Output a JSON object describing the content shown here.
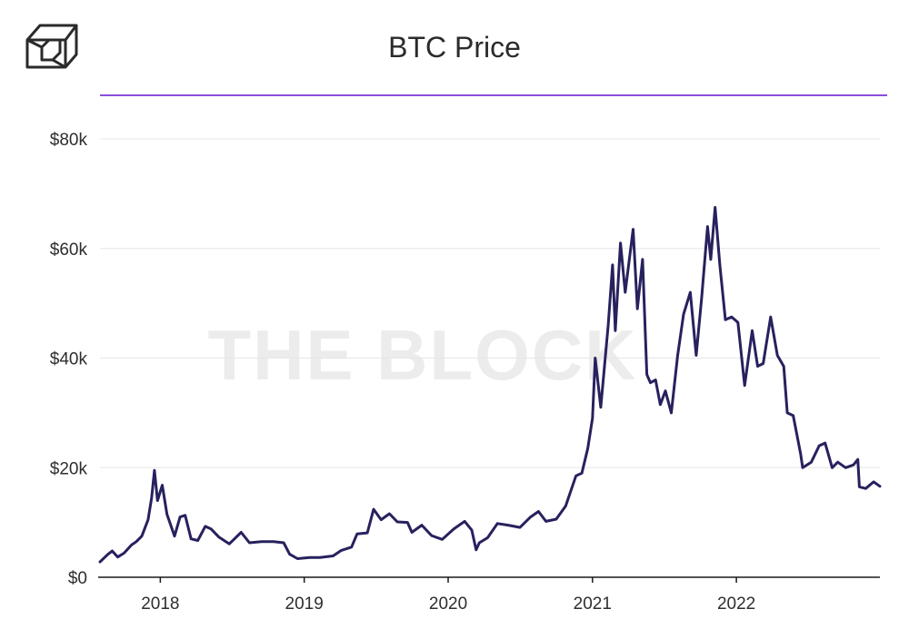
{
  "header": {
    "title": "BTC Price",
    "accent_color": "#8a4fd8",
    "logo_icon": "cube-logo-icon"
  },
  "watermark": "THE BLOCK",
  "chart_data": {
    "type": "line",
    "title": "BTC Price",
    "xlabel": "",
    "ylabel": "",
    "x_range": [
      "2017-08-01",
      "2022-12-31"
    ],
    "ylim": [
      0,
      80000
    ],
    "y_ticks": [
      0,
      20000,
      40000,
      60000,
      80000
    ],
    "y_tick_labels": [
      "$0",
      "$20k",
      "$40k",
      "$60k",
      "$80k"
    ],
    "x_ticks": [
      "2018-01-01",
      "2019-01-01",
      "2020-01-01",
      "2021-01-01",
      "2022-01-01"
    ],
    "x_tick_labels": [
      "2018",
      "2019",
      "2020",
      "2021",
      "2022"
    ],
    "grid": true,
    "line_color": "#27215e",
    "series": [
      {
        "x": [
          "2017-08-01",
          "2017-08-20",
          "2017-09-01",
          "2017-09-15",
          "2017-10-01",
          "2017-10-20",
          "2017-11-01",
          "2017-11-15",
          "2017-12-01",
          "2017-12-10",
          "2017-12-17",
          "2017-12-25",
          "2018-01-06",
          "2018-01-18",
          "2018-02-06",
          "2018-02-20",
          "2018-03-05",
          "2018-03-20",
          "2018-04-06",
          "2018-04-25",
          "2018-05-10",
          "2018-05-30",
          "2018-06-25",
          "2018-07-25",
          "2018-08-15",
          "2018-09-15",
          "2018-10-15",
          "2018-11-10",
          "2018-11-25",
          "2018-12-15",
          "2019-01-15",
          "2019-02-10",
          "2019-03-15",
          "2019-04-05",
          "2019-05-01",
          "2019-05-15",
          "2019-06-10",
          "2019-06-26",
          "2019-07-15",
          "2019-08-05",
          "2019-08-25",
          "2019-09-20",
          "2019-10-01",
          "2019-10-26",
          "2019-11-20",
          "2019-12-17",
          "2020-01-15",
          "2020-02-12",
          "2020-03-01",
          "2020-03-12",
          "2020-03-20",
          "2020-04-10",
          "2020-05-05",
          "2020-06-01",
          "2020-07-01",
          "2020-07-28",
          "2020-08-17",
          "2020-09-05",
          "2020-10-01",
          "2020-10-25",
          "2020-11-20",
          "2020-12-05",
          "2020-12-20",
          "2021-01-01",
          "2021-01-08",
          "2021-01-22",
          "2021-02-10",
          "2021-02-21",
          "2021-02-28",
          "2021-03-13",
          "2021-03-25",
          "2021-04-14",
          "2021-04-25",
          "2021-05-08",
          "2021-05-19",
          "2021-05-28",
          "2021-06-10",
          "2021-06-22",
          "2021-07-05",
          "2021-07-20",
          "2021-08-05",
          "2021-08-20",
          "2021-09-06",
          "2021-09-21",
          "2021-10-05",
          "2021-10-20",
          "2021-10-28",
          "2021-11-08",
          "2021-11-20",
          "2021-12-04",
          "2021-12-20",
          "2022-01-05",
          "2022-01-22",
          "2022-02-10",
          "2022-02-24",
          "2022-03-10",
          "2022-03-29",
          "2022-04-15",
          "2022-05-01",
          "2022-05-10",
          "2022-05-25",
          "2022-06-13",
          "2022-06-18",
          "2022-07-10",
          "2022-07-30",
          "2022-08-14",
          "2022-09-01",
          "2022-09-15",
          "2022-10-05",
          "2022-10-25",
          "2022-11-05",
          "2022-11-09",
          "2022-11-25",
          "2022-12-15",
          "2022-12-31"
        ],
        "y": [
          2800,
          4100,
          4800,
          3700,
          4400,
          5900,
          6500,
          7500,
          10500,
          14500,
          19500,
          14000,
          16800,
          11500,
          7500,
          11000,
          11300,
          7000,
          6700,
          9300,
          8800,
          7300,
          6100,
          8200,
          6300,
          6500,
          6500,
          6300,
          4200,
          3400,
          3600,
          3600,
          3900,
          4900,
          5500,
          7900,
          8100,
          12400,
          10500,
          11600,
          10100,
          10000,
          8200,
          9500,
          7600,
          6900,
          8800,
          10200,
          8600,
          5000,
          6300,
          7200,
          9800,
          9500,
          9100,
          11000,
          12000,
          10200,
          10600,
          13000,
          18500,
          19000,
          23500,
          29000,
          40000,
          31000,
          46000,
          57000,
          45000,
          61000,
          52000,
          63500,
          49000,
          58000,
          37000,
          35500,
          36000,
          31500,
          34000,
          30000,
          40500,
          48000,
          52000,
          40500,
          51000,
          64000,
          58000,
          67500,
          57000,
          47000,
          47500,
          46500,
          35000,
          45000,
          38500,
          39000,
          47500,
          40500,
          38500,
          30000,
          29500,
          22500,
          20000,
          21000,
          24000,
          24500,
          20000,
          21000,
          20000,
          20500,
          21500,
          16500,
          16200,
          17400,
          16600
        ]
      }
    ]
  }
}
